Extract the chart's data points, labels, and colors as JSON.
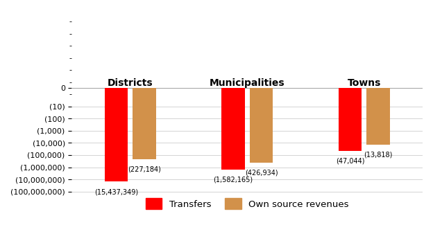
{
  "groups": [
    "Districts",
    "Municipalities",
    "Towns"
  ],
  "transfers": [
    -15437349,
    -1582165,
    -47044
  ],
  "own_source": [
    -227184,
    -426934,
    -13818
  ],
  "transfer_labels": [
    "(15,437,349)",
    "(1,582,165)",
    "(47,044)"
  ],
  "own_source_labels": [
    "(227,184)",
    "(426,934)",
    "(13,818)"
  ],
  "bar_color_transfers": "#FF0000",
  "bar_color_own": "#D2914A",
  "background_color": "#FFFFFF",
  "legend_transfers": "Transfers",
  "legend_own": "Own source revenues",
  "yticks": [
    0,
    -10,
    -100,
    -1000,
    -10000,
    -100000,
    -1000000,
    -10000000,
    -100000000
  ],
  "ytick_labels": [
    "0",
    "(10)",
    "(100)",
    "(1,000)",
    "(10,000)",
    "(100,000)",
    "(1,000,000)",
    "(10,000,000)",
    "(100,000,000)"
  ]
}
